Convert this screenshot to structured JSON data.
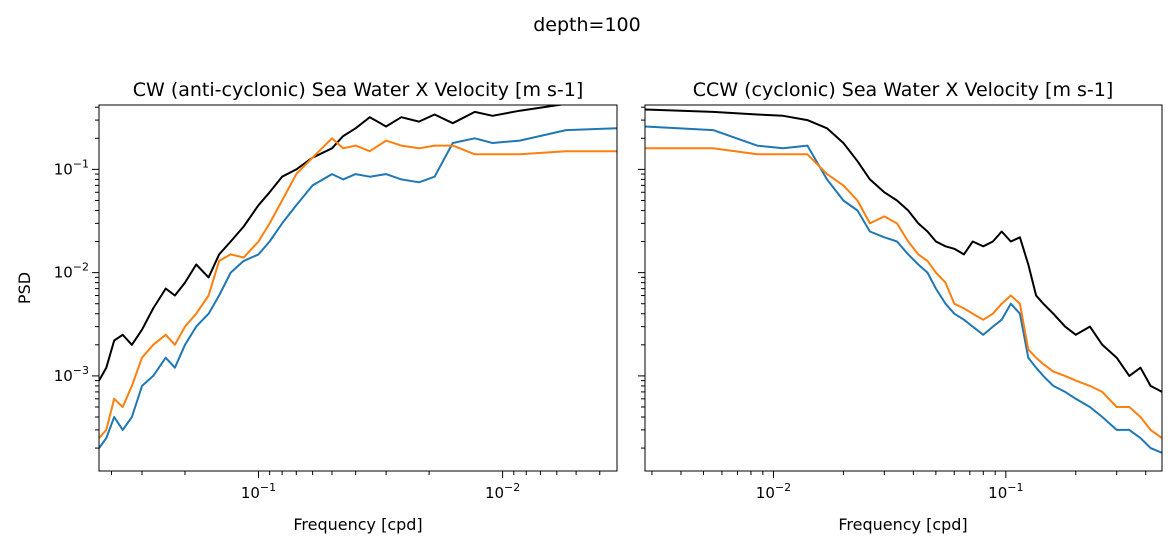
{
  "suptitle": "depth=100",
  "chart_data": [
    {
      "type": "line",
      "title": "CW (anti-cyclonic) Sea Water X Velocity [m s-1]",
      "xlabel": "Frequency [cpd]",
      "ylabel": "PSD",
      "xscale": "log",
      "yscale": "log",
      "x_inverted": true,
      "xlim": [
        0.45,
        0.0034
      ],
      "ylim": [
        0.00012,
        0.42
      ],
      "xticks": [
        {
          "value": 0.1,
          "label": "10^-1"
        },
        {
          "value": 0.01,
          "label": "10^-2"
        }
      ],
      "yticks": [
        {
          "value": 0.1,
          "label": "10^-1"
        },
        {
          "value": 0.01,
          "label": "10^-2"
        },
        {
          "value": 0.001,
          "label": "10^-3"
        }
      ],
      "series": [
        {
          "color": "#000000",
          "x": [
            0.45,
            0.42,
            0.39,
            0.36,
            0.33,
            0.3,
            0.27,
            0.24,
            0.22,
            0.2,
            0.18,
            0.16,
            0.145,
            0.13,
            0.115,
            0.1,
            0.09,
            0.08,
            0.07,
            0.06,
            0.05,
            0.045,
            0.04,
            0.035,
            0.03,
            0.026,
            0.022,
            0.019,
            0.016,
            0.013,
            0.011,
            0.0085,
            0.0055,
            0.0034
          ],
          "y": [
            0.0009,
            0.0012,
            0.0022,
            0.0025,
            0.002,
            0.0028,
            0.0045,
            0.007,
            0.006,
            0.008,
            0.012,
            0.009,
            0.015,
            0.02,
            0.028,
            0.045,
            0.06,
            0.085,
            0.1,
            0.13,
            0.16,
            0.21,
            0.25,
            0.32,
            0.26,
            0.32,
            0.29,
            0.34,
            0.28,
            0.36,
            0.33,
            0.37,
            0.43,
            0.43
          ]
        },
        {
          "color": "#1f77b4",
          "x": [
            0.45,
            0.42,
            0.39,
            0.36,
            0.33,
            0.3,
            0.27,
            0.24,
            0.22,
            0.2,
            0.18,
            0.16,
            0.145,
            0.13,
            0.115,
            0.1,
            0.09,
            0.08,
            0.07,
            0.06,
            0.05,
            0.045,
            0.04,
            0.035,
            0.03,
            0.026,
            0.022,
            0.019,
            0.016,
            0.013,
            0.011,
            0.0085,
            0.0055,
            0.0034
          ],
          "y": [
            0.0002,
            0.00025,
            0.0004,
            0.0003,
            0.0004,
            0.0008,
            0.001,
            0.0015,
            0.0012,
            0.002,
            0.003,
            0.004,
            0.006,
            0.01,
            0.013,
            0.015,
            0.02,
            0.03,
            0.045,
            0.07,
            0.09,
            0.08,
            0.09,
            0.085,
            0.09,
            0.08,
            0.075,
            0.085,
            0.18,
            0.2,
            0.18,
            0.19,
            0.24,
            0.25
          ]
        },
        {
          "color": "#ff7f0e",
          "x": [
            0.45,
            0.42,
            0.39,
            0.36,
            0.33,
            0.3,
            0.27,
            0.24,
            0.22,
            0.2,
            0.18,
            0.16,
            0.145,
            0.13,
            0.115,
            0.1,
            0.09,
            0.08,
            0.07,
            0.06,
            0.05,
            0.045,
            0.04,
            0.035,
            0.03,
            0.026,
            0.022,
            0.019,
            0.016,
            0.013,
            0.011,
            0.0085,
            0.0055,
            0.0034
          ],
          "y": [
            0.00025,
            0.0003,
            0.0006,
            0.0005,
            0.0008,
            0.0015,
            0.002,
            0.0025,
            0.002,
            0.003,
            0.004,
            0.006,
            0.013,
            0.015,
            0.014,
            0.02,
            0.03,
            0.05,
            0.09,
            0.13,
            0.2,
            0.16,
            0.17,
            0.15,
            0.19,
            0.17,
            0.16,
            0.17,
            0.17,
            0.14,
            0.14,
            0.14,
            0.15,
            0.15
          ]
        }
      ]
    },
    {
      "type": "line",
      "title": "CCW (cyclonic) Sea Water X Velocity [m s-1]",
      "xlabel": "Frequency [cpd]",
      "ylabel": "",
      "xscale": "log",
      "yscale": "log",
      "x_inverted": false,
      "xlim": [
        0.0028,
        0.47
      ],
      "ylim": [
        0.00012,
        0.42
      ],
      "xticks": [
        {
          "value": 0.01,
          "label": "10^-2"
        },
        {
          "value": 0.1,
          "label": "10^-1"
        }
      ],
      "yticks": [
        {
          "value": 0.1,
          "label": ""
        },
        {
          "value": 0.01,
          "label": ""
        },
        {
          "value": 0.001,
          "label": ""
        }
      ],
      "series": [
        {
          "color": "#000000",
          "x": [
            0.0028,
            0.0055,
            0.0085,
            0.011,
            0.014,
            0.017,
            0.02,
            0.023,
            0.026,
            0.03,
            0.034,
            0.038,
            0.042,
            0.046,
            0.05,
            0.055,
            0.06,
            0.066,
            0.072,
            0.08,
            0.088,
            0.096,
            0.105,
            0.115,
            0.125,
            0.135,
            0.145,
            0.16,
            0.18,
            0.2,
            0.23,
            0.26,
            0.3,
            0.34,
            0.38,
            0.42,
            0.47
          ],
          "y": [
            0.38,
            0.36,
            0.34,
            0.33,
            0.3,
            0.25,
            0.18,
            0.12,
            0.08,
            0.06,
            0.05,
            0.04,
            0.03,
            0.025,
            0.02,
            0.018,
            0.017,
            0.015,
            0.02,
            0.018,
            0.02,
            0.025,
            0.02,
            0.022,
            0.012,
            0.006,
            0.005,
            0.004,
            0.003,
            0.0025,
            0.003,
            0.002,
            0.0015,
            0.001,
            0.0012,
            0.0008,
            0.0007
          ]
        },
        {
          "color": "#1f77b4",
          "x": [
            0.0028,
            0.0055,
            0.0085,
            0.011,
            0.014,
            0.017,
            0.02,
            0.023,
            0.026,
            0.03,
            0.034,
            0.038,
            0.042,
            0.046,
            0.05,
            0.055,
            0.06,
            0.066,
            0.072,
            0.08,
            0.088,
            0.096,
            0.105,
            0.115,
            0.125,
            0.135,
            0.145,
            0.16,
            0.18,
            0.2,
            0.23,
            0.26,
            0.3,
            0.34,
            0.38,
            0.42,
            0.47
          ],
          "y": [
            0.26,
            0.24,
            0.17,
            0.16,
            0.17,
            0.08,
            0.05,
            0.04,
            0.025,
            0.022,
            0.02,
            0.015,
            0.012,
            0.01,
            0.007,
            0.005,
            0.004,
            0.0035,
            0.003,
            0.0025,
            0.003,
            0.0035,
            0.005,
            0.004,
            0.0015,
            0.0012,
            0.001,
            0.0008,
            0.0007,
            0.0006,
            0.0005,
            0.0004,
            0.0003,
            0.0003,
            0.00025,
            0.0002,
            0.00018
          ]
        },
        {
          "color": "#ff7f0e",
          "x": [
            0.0028,
            0.0055,
            0.0085,
            0.011,
            0.014,
            0.017,
            0.02,
            0.023,
            0.026,
            0.03,
            0.034,
            0.038,
            0.042,
            0.046,
            0.05,
            0.055,
            0.06,
            0.066,
            0.072,
            0.08,
            0.088,
            0.096,
            0.105,
            0.115,
            0.125,
            0.135,
            0.145,
            0.16,
            0.18,
            0.2,
            0.23,
            0.26,
            0.3,
            0.34,
            0.38,
            0.42,
            0.47
          ],
          "y": [
            0.16,
            0.16,
            0.14,
            0.14,
            0.14,
            0.09,
            0.07,
            0.05,
            0.03,
            0.035,
            0.03,
            0.02,
            0.015,
            0.013,
            0.01,
            0.008,
            0.005,
            0.0045,
            0.004,
            0.0035,
            0.004,
            0.005,
            0.006,
            0.005,
            0.0018,
            0.0015,
            0.0013,
            0.0011,
            0.001,
            0.0009,
            0.0008,
            0.0007,
            0.0005,
            0.0005,
            0.0004,
            0.0003,
            0.00025
          ]
        }
      ]
    }
  ]
}
